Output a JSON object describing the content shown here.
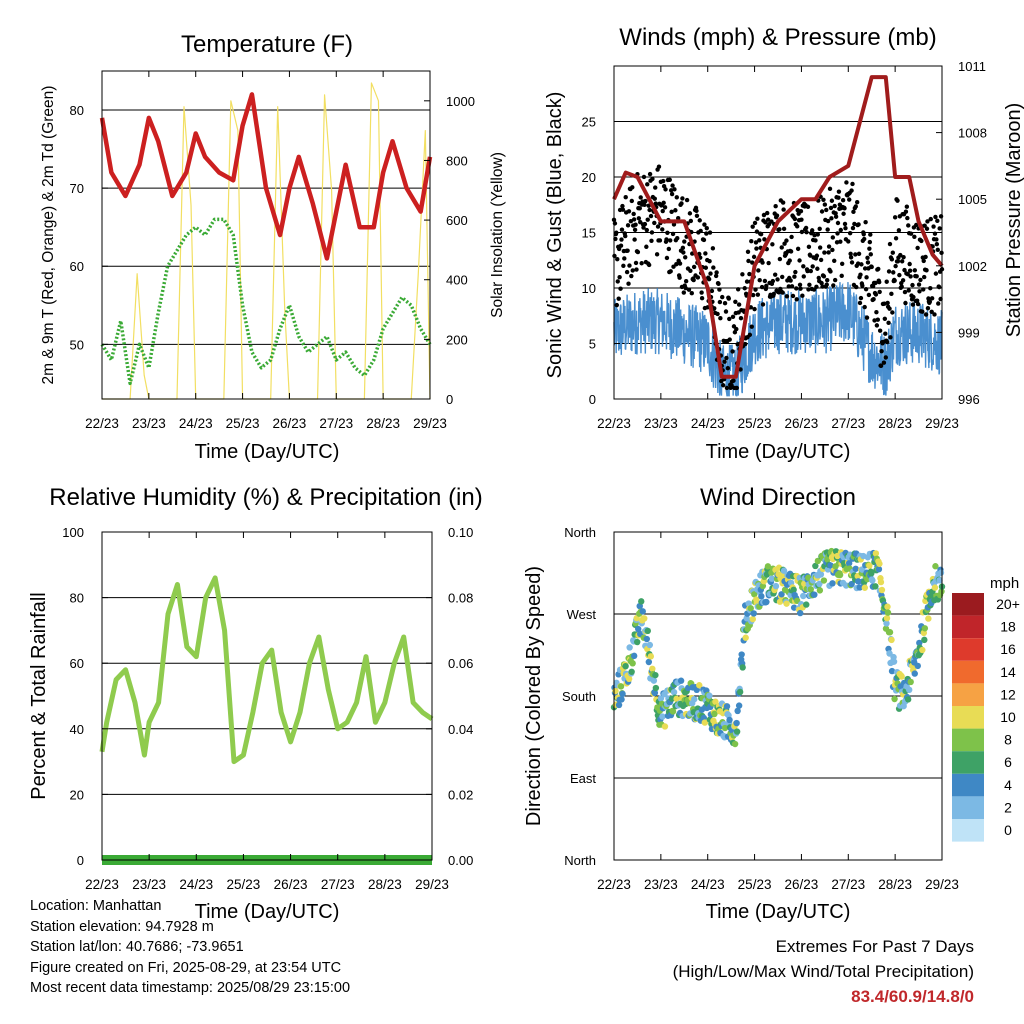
{
  "x_ticks": [
    "22/23",
    "23/23",
    "24/23",
    "25/23",
    "26/23",
    "27/23",
    "28/23",
    "29/23"
  ],
  "x_label": "Time (Day/UTC)",
  "colors": {
    "temp": "#cc2020",
    "dew": "#3aaa35",
    "solar": "#f2df62",
    "wind": "#4a8fcf",
    "gust": "#000000",
    "pressure": "#a01c1c",
    "rh": "#8fcb4e",
    "precip": "#3aaa35"
  },
  "chart_data": [
    {
      "id": "temperature",
      "type": "line",
      "title": "Temperature (F)",
      "xlabel": "Time (Day/UTC)",
      "ylabel": "2m & 9m T (Red, Orange) & 2m Td (Green)",
      "y2label": "Solar Insolation (Yellow)",
      "ylim": [
        43,
        85
      ],
      "y2lim": [
        0,
        1100
      ],
      "yticks": [
        50,
        60,
        70,
        80
      ],
      "y2ticks": [
        0,
        200,
        400,
        600,
        800,
        1000
      ],
      "grid": true,
      "series": [
        {
          "name": "2m T",
          "color": "#cc2020",
          "x": [
            0,
            0.2,
            0.5,
            0.8,
            1.0,
            1.2,
            1.5,
            1.8,
            2.0,
            2.2,
            2.5,
            2.8,
            3.0,
            3.2,
            3.5,
            3.8,
            4.0,
            4.2,
            4.5,
            4.8,
            5.0,
            5.2,
            5.5,
            5.8,
            6.0,
            6.2,
            6.5,
            6.8,
            7.0
          ],
          "y": [
            79,
            72,
            69,
            73,
            79,
            76,
            69,
            72,
            77,
            74,
            72,
            71,
            78,
            82,
            70,
            64,
            70,
            74,
            68,
            61,
            67,
            73,
            65,
            65,
            72,
            76,
            70,
            67,
            74
          ]
        },
        {
          "name": "2m Td",
          "color": "#3aaa35",
          "x": [
            0,
            0.2,
            0.4,
            0.6,
            0.8,
            1.0,
            1.2,
            1.4,
            1.6,
            1.8,
            2.0,
            2.2,
            2.4,
            2.6,
            2.8,
            3.0,
            3.2,
            3.4,
            3.6,
            3.8,
            4.0,
            4.2,
            4.4,
            4.6,
            4.8,
            5.0,
            5.2,
            5.4,
            5.6,
            5.8,
            6.0,
            6.2,
            6.4,
            6.6,
            6.8,
            7.0
          ],
          "y": [
            50,
            48,
            53,
            45,
            50,
            47,
            54,
            60,
            62,
            64,
            65,
            64,
            66,
            66,
            64,
            55,
            49,
            47,
            48,
            52,
            55,
            51,
            49,
            50,
            51,
            48,
            49,
            47,
            46,
            48,
            52,
            54,
            56,
            55,
            52,
            50
          ]
        },
        {
          "name": "Solar Insolation",
          "color": "#f2df62",
          "axis": "y2",
          "x": [
            0,
            0.6,
            0.75,
            0.9,
            1.0,
            1.6,
            1.75,
            1.9,
            2.0,
            2.6,
            2.75,
            2.9,
            3.0,
            3.6,
            3.75,
            3.9,
            4.0,
            4.6,
            4.75,
            4.9,
            5.0,
            5.6,
            5.75,
            5.9,
            6.0,
            6.6,
            6.75,
            6.9,
            7.0
          ],
          "y": [
            0,
            0,
            420,
            80,
            0,
            0,
            980,
            650,
            0,
            0,
            1000,
            900,
            0,
            0,
            980,
            300,
            0,
            0,
            1020,
            700,
            0,
            0,
            1060,
            1000,
            0,
            0,
            420,
            900,
            0
          ]
        }
      ]
    },
    {
      "id": "winds",
      "type": "scatter",
      "title": "Winds (mph) & Pressure (mb)",
      "xlabel": "Time (Day/UTC)",
      "ylabel": "Sonic Wind & Gust (Blue, Black)",
      "y2label": "Station Pressure (Maroon)",
      "ylim": [
        0,
        30
      ],
      "y2lim": [
        996,
        1011
      ],
      "yticks": [
        0,
        5,
        10,
        15,
        20,
        25
      ],
      "y2ticks": [
        996,
        999,
        1002,
        1005,
        1008,
        1011
      ],
      "grid": true,
      "series": [
        {
          "name": "Sonic Wind",
          "color": "#4a8fcf",
          "x": [
            0,
            0.5,
            1.0,
            1.5,
            2.0,
            2.3,
            2.6,
            3.0,
            3.5,
            4.0,
            4.5,
            5.0,
            5.5,
            5.8,
            6.0,
            6.5,
            7.0
          ],
          "y": [
            6,
            7,
            7,
            6,
            5,
            2,
            2,
            6,
            7,
            7,
            7,
            8,
            4,
            3,
            6,
            6,
            5
          ]
        },
        {
          "name": "Gust",
          "color": "#000000",
          "x": [
            0,
            0.5,
            1.0,
            1.5,
            2.0,
            2.3,
            2.6,
            3.0,
            3.5,
            4.0,
            4.5,
            5.0,
            5.5,
            5.8,
            6.0,
            6.5,
            7.0
          ],
          "y": [
            12,
            16,
            17,
            14,
            12,
            5,
            5,
            12,
            14,
            13,
            14,
            16,
            10,
            6,
            14,
            12,
            12
          ]
        },
        {
          "name": "Station Pressure",
          "color": "#a01c1c",
          "axis": "y2",
          "x": [
            0,
            0.25,
            0.5,
            1.0,
            1.5,
            2.0,
            2.3,
            2.6,
            3.0,
            3.5,
            4.0,
            4.3,
            4.6,
            5.0,
            5.5,
            5.8,
            6.0,
            6.3,
            6.5,
            6.8,
            7.0
          ],
          "y": [
            1005,
            1006.2,
            1006,
            1004,
            1004,
            1001,
            997,
            997,
            1002,
            1004,
            1005,
            1005,
            1006,
            1006.5,
            1010.5,
            1010.5,
            1006,
            1006,
            1004,
            1002.5,
            1002
          ]
        }
      ]
    },
    {
      "id": "humidity",
      "type": "line",
      "title": "Relative Humidity (%) & Precipitation (in)",
      "xlabel": "Time (Day/UTC)",
      "ylabel": "Percent & Total Rainfall",
      "ylim": [
        0,
        100
      ],
      "y2lim": [
        0,
        0.1
      ],
      "yticks": [
        0,
        20,
        40,
        60,
        80,
        100
      ],
      "y2ticks": [
        "0.00",
        "0.02",
        "0.04",
        "0.06",
        "0.08",
        "0.10"
      ],
      "grid": true,
      "series": [
        {
          "name": "Relative Humidity",
          "color": "#8fcb4e",
          "x": [
            0,
            0.1,
            0.3,
            0.5,
            0.7,
            0.9,
            1.0,
            1.2,
            1.4,
            1.6,
            1.8,
            2.0,
            2.2,
            2.4,
            2.6,
            2.8,
            3.0,
            3.2,
            3.4,
            3.6,
            3.8,
            4.0,
            4.2,
            4.4,
            4.6,
            4.8,
            5.0,
            5.2,
            5.4,
            5.6,
            5.8,
            6.0,
            6.2,
            6.4,
            6.6,
            6.8,
            7.0
          ],
          "y": [
            33,
            42,
            55,
            58,
            48,
            32,
            42,
            48,
            75,
            84,
            65,
            62,
            80,
            86,
            70,
            30,
            32,
            45,
            60,
            64,
            45,
            36,
            45,
            60,
            68,
            52,
            40,
            42,
            48,
            62,
            42,
            48,
            60,
            68,
            48,
            45,
            43
          ]
        },
        {
          "name": "Total Precipitation",
          "color": "#3aaa35",
          "axis": "y2",
          "x": [
            0,
            7
          ],
          "y": [
            0,
            0
          ]
        }
      ]
    },
    {
      "id": "wind_direction",
      "type": "scatter",
      "title": "Wind Direction",
      "xlabel": "Time (Day/UTC)",
      "ylabel": "Direction (Colored By Speed)",
      "ylim": [
        0,
        360
      ],
      "yticks": [
        "North",
        "East",
        "South",
        "West",
        "North"
      ],
      "grid": true,
      "colorbar": {
        "label": "mph",
        "ticks": [
          "20+",
          "18",
          "16",
          "14",
          "12",
          "10",
          "8",
          "6",
          "4",
          "2",
          "0"
        ],
        "colors": [
          "#9b1b1f",
          "#c0252a",
          "#de3a2c",
          "#f06a2d",
          "#f6a244",
          "#e8dc55",
          "#7ec24a",
          "#3ea266",
          "#3f88c5",
          "#7cb9e4",
          "#bfe3f7"
        ]
      },
      "series": [
        {
          "name": "Direction",
          "x": [
            0,
            0.3,
            0.6,
            0.8,
            1.0,
            1.3,
            1.6,
            2.0,
            2.2,
            2.4,
            2.6,
            2.8,
            3.0,
            3.3,
            3.6,
            4.0,
            4.3,
            4.6,
            5.0,
            5.3,
            5.6,
            5.8,
            6.0,
            6.2,
            6.5,
            6.8,
            7.0
          ],
          "y": [
            175,
            210,
            270,
            210,
            160,
            180,
            175,
            170,
            155,
            150,
            145,
            260,
            290,
            305,
            300,
            290,
            310,
            320,
            320,
            315,
            320,
            275,
            190,
            180,
            230,
            305,
            300
          ]
        }
      ]
    }
  ],
  "info": {
    "location": "Location: Manhattan",
    "elevation": "Station elevation: 94.7928 m",
    "latlon": "Station lat/lon: 40.7686; -73.9651",
    "created": "Figure created on Fri, 2025-08-29, at 23:54 UTC",
    "recent": "Most recent data timestamp: 2025/08/29 23:15:00"
  },
  "extremes": {
    "line1": "Extremes For Past 7 Days",
    "line2": "(High/Low/Max Wind/Total Precipitation)",
    "value": "83.4/60.9/14.8/0"
  }
}
